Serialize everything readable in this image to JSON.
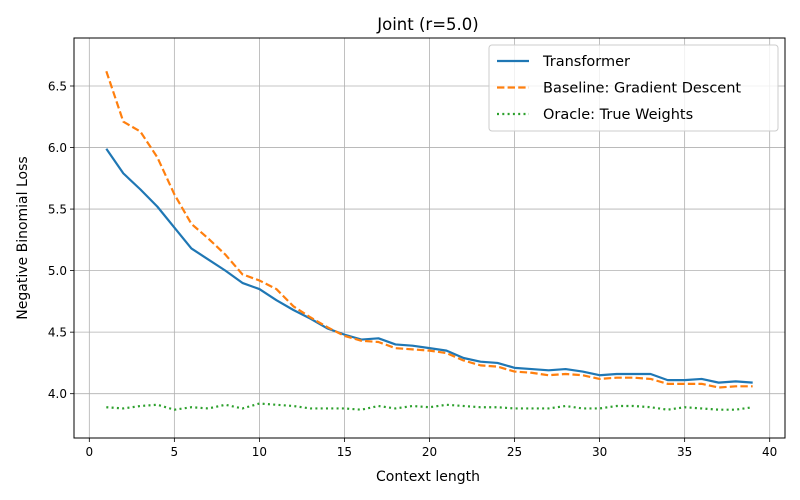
{
  "chart_data": {
    "type": "line",
    "title": "Joint (r=5.0)",
    "xlabel": "Context length",
    "ylabel": "Negative Binomial Loss",
    "xlim": [
      -0.9,
      40.9
    ],
    "ylim": [
      3.64,
      6.89
    ],
    "xticks": [
      0,
      5,
      10,
      15,
      20,
      25,
      30,
      35,
      40
    ],
    "yticks": [
      4.0,
      4.5,
      5.0,
      5.5,
      6.0,
      6.5
    ],
    "xtick_labels": [
      "0",
      "5",
      "10",
      "15",
      "20",
      "25",
      "30",
      "35",
      "40"
    ],
    "ytick_labels": [
      "4.0",
      "4.5",
      "5.0",
      "5.5",
      "6.0",
      "6.5"
    ],
    "grid": true,
    "legend_position": "top-right",
    "x": [
      1,
      2,
      3,
      4,
      5,
      6,
      7,
      8,
      9,
      10,
      11,
      12,
      13,
      14,
      15,
      16,
      17,
      18,
      19,
      20,
      21,
      22,
      23,
      24,
      25,
      26,
      27,
      28,
      29,
      30,
      31,
      32,
      33,
      34,
      35,
      36,
      37,
      38,
      39
    ],
    "series": [
      {
        "name": "Transformer",
        "color": "#1f77b4",
        "style": "solid",
        "values": [
          5.99,
          5.79,
          5.66,
          5.52,
          5.35,
          5.18,
          5.09,
          5.0,
          4.9,
          4.85,
          4.76,
          4.68,
          4.61,
          4.53,
          4.48,
          4.44,
          4.45,
          4.4,
          4.39,
          4.37,
          4.35,
          4.29,
          4.26,
          4.25,
          4.21,
          4.2,
          4.19,
          4.2,
          4.18,
          4.15,
          4.16,
          4.16,
          4.16,
          4.11,
          4.11,
          4.12,
          4.09,
          4.1,
          4.09
        ]
      },
      {
        "name": "Baseline: Gradient Descent",
        "color": "#ff7f0e",
        "style": "dashed",
        "values": [
          6.62,
          6.21,
          6.13,
          5.92,
          5.62,
          5.38,
          5.26,
          5.13,
          4.97,
          4.92,
          4.85,
          4.71,
          4.62,
          4.54,
          4.47,
          4.43,
          4.42,
          4.37,
          4.36,
          4.35,
          4.33,
          4.27,
          4.23,
          4.22,
          4.18,
          4.17,
          4.15,
          4.16,
          4.15,
          4.12,
          4.13,
          4.13,
          4.12,
          4.08,
          4.08,
          4.08,
          4.05,
          4.06,
          4.06
        ]
      },
      {
        "name": "Oracle: True Weights",
        "color": "#2ca02c",
        "style": "dotted",
        "values": [
          3.89,
          3.88,
          3.9,
          3.91,
          3.87,
          3.89,
          3.88,
          3.91,
          3.88,
          3.92,
          3.91,
          3.9,
          3.88,
          3.88,
          3.88,
          3.87,
          3.9,
          3.88,
          3.9,
          3.89,
          3.91,
          3.9,
          3.89,
          3.89,
          3.88,
          3.88,
          3.88,
          3.9,
          3.88,
          3.88,
          3.9,
          3.9,
          3.89,
          3.87,
          3.89,
          3.88,
          3.87,
          3.87,
          3.89
        ]
      }
    ]
  }
}
